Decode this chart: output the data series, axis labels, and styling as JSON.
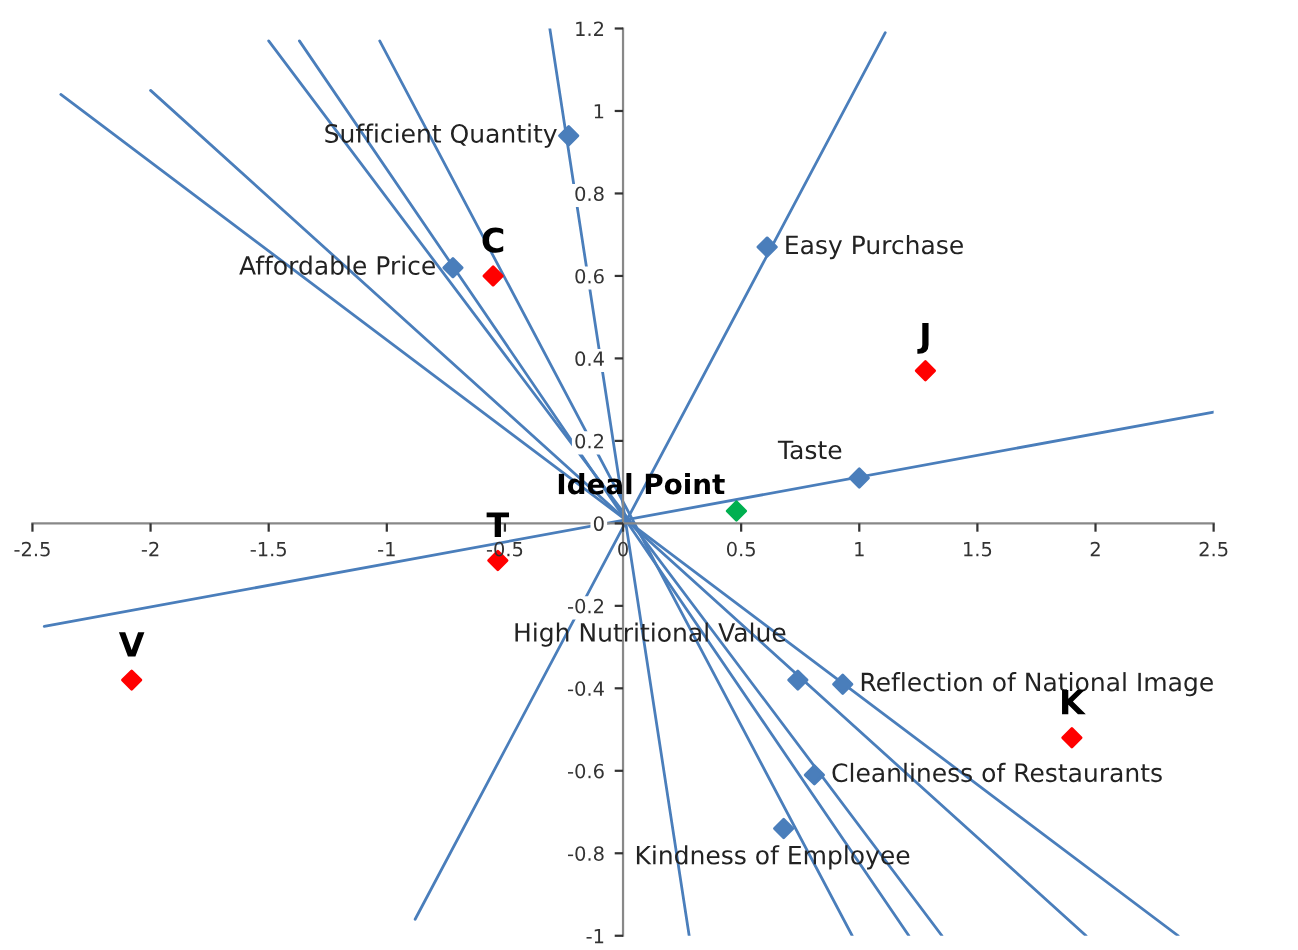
{
  "chart_data": {
    "type": "scatter",
    "xlim": [
      -2.5,
      2.5
    ],
    "ylim": [
      -1,
      1.2
    ],
    "xticks": [
      -2.5,
      -2,
      -1.5,
      -1,
      -0.5,
      0,
      0.5,
      1,
      1.5,
      2,
      2.5
    ],
    "yticks": [
      -1,
      -0.8,
      -0.6,
      -0.4,
      -0.2,
      0,
      0.2,
      0.4,
      0.6,
      0.8,
      1,
      1.2
    ],
    "grid": false,
    "legend": false,
    "series": [
      {
        "type": "line",
        "color": "#4a7ebb",
        "x": [
          -2.45,
          2.5
        ],
        "values": [
          -0.25,
          0.27
        ]
      },
      {
        "type": "line",
        "color": "#4a7ebb",
        "x": [
          -0.88,
          1.11
        ],
        "values": [
          -0.96,
          1.19
        ]
      },
      {
        "type": "line",
        "color": "#4a7ebb",
        "x": [
          0.28,
          -0.31
        ],
        "values": [
          -1,
          1.2
        ]
      },
      {
        "type": "line",
        "color": "#4a7ebb",
        "x": [
          1.21,
          -1.37
        ],
        "values": [
          -1,
          1.17
        ]
      },
      {
        "type": "line",
        "color": "#4a7ebb",
        "x": [
          -1.03,
          0.97
        ],
        "values": [
          1.17,
          -1
        ]
      },
      {
        "type": "line",
        "color": "#4a7ebb",
        "x": [
          -1.5,
          1.35
        ],
        "values": [
          1.17,
          -1
        ]
      },
      {
        "type": "line",
        "color": "#4a7ebb",
        "x": [
          -2.0,
          1.96
        ],
        "values": [
          1.05,
          -1
        ]
      },
      {
        "type": "line",
        "color": "#4a7ebb",
        "x": [
          -2.38,
          2.35
        ],
        "values": [
          1.04,
          -1
        ]
      },
      {
        "type": "scatter",
        "marker": "diamond",
        "color": "#4a7ebb",
        "x": [
          -0.23,
          -0.72,
          0.61,
          1.0,
          0.74,
          0.93,
          0.81,
          0.68
        ],
        "values": [
          0.94,
          0.62,
          0.67,
          0.11,
          -0.38,
          -0.39,
          -0.61,
          -0.74
        ],
        "value_labels": [
          "Sufficient Quantity",
          "Affordable Price",
          "Easy Purchase",
          "Taste",
          "High Nutritional Value",
          "Reflection of National Image",
          "Cleanliness of Restaurants",
          "Kindness of Employee"
        ]
      },
      {
        "type": "scatter",
        "marker": "diamond",
        "color": "#ff0000",
        "x": [
          -0.55,
          1.28,
          1.9,
          -0.53,
          -2.08
        ],
        "values": [
          0.6,
          0.37,
          -0.52,
          -0.09,
          -0.38
        ],
        "value_labels": [
          "C",
          "J",
          "K",
          "T",
          "V"
        ]
      },
      {
        "type": "scatter",
        "marker": "diamond",
        "color": "#00b050",
        "x": [
          0.48
        ],
        "values": [
          0.03
        ],
        "value_labels": [
          "Ideal Point"
        ]
      }
    ]
  }
}
